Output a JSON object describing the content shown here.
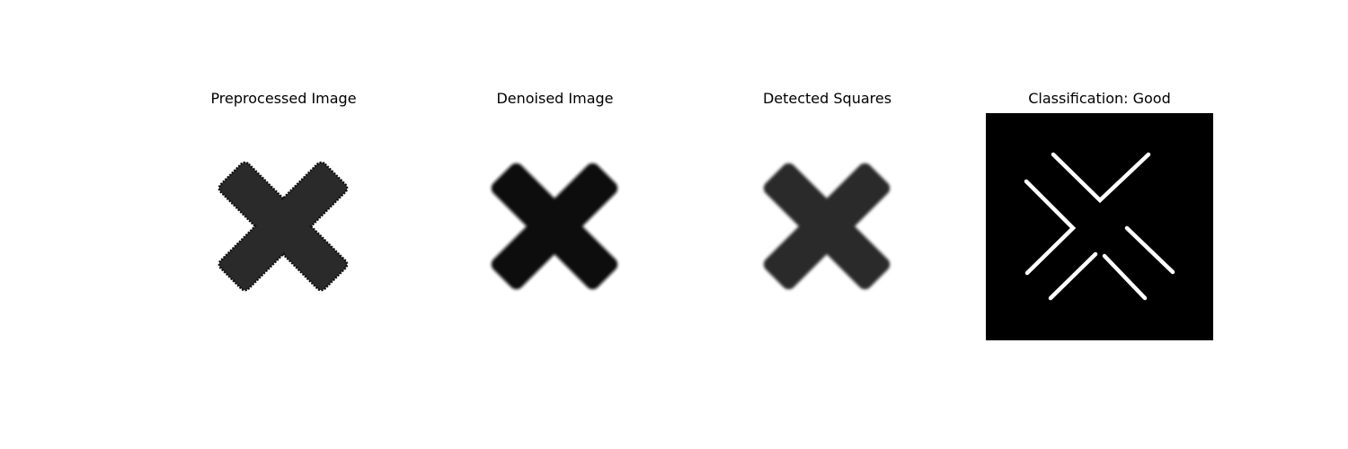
{
  "figure": {
    "panels": [
      {
        "title": "Preprocessed Image"
      },
      {
        "title": "Denoised Image"
      },
      {
        "title": "Detected Squares"
      },
      {
        "title": "Classification: Good"
      }
    ]
  },
  "colors": {
    "background": "#ffffff",
    "preprocessed_fill": "#2a2a2a",
    "preprocessed_edge": "#111111",
    "denoised_fill": "#111111",
    "detected_fill": "#2b2b2b",
    "classification_background": "#000000",
    "classification_lines": "#ffffff"
  }
}
